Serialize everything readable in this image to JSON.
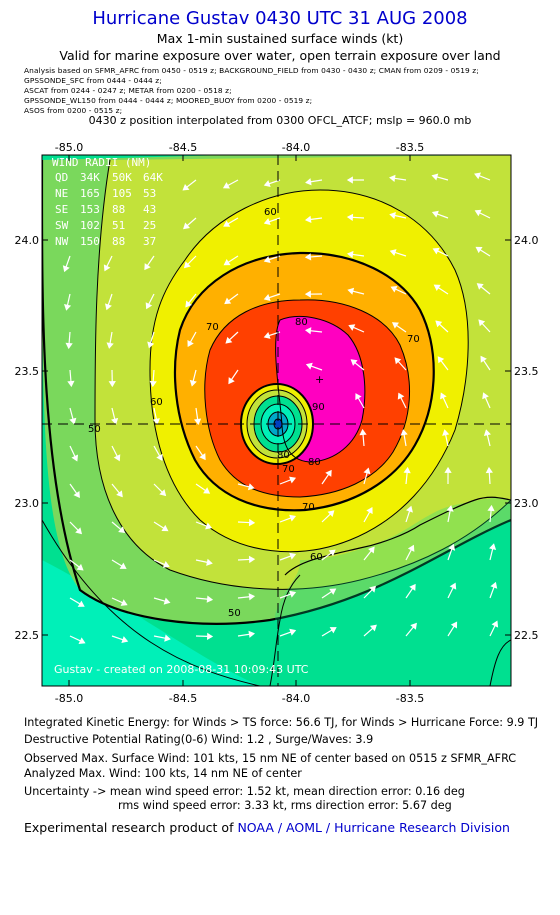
{
  "header": {
    "title": "Hurricane Gustav 0430 UTC 31 AUG 2008",
    "subtitle": "Max 1-min sustained surface winds (kt)",
    "valid_note": "Valid for marine exposure over water, open terrain exposure over land",
    "sources": [
      "Analysis based on  SFMR_AFRC from 0450 - 0519 z;  BACKGROUND_FIELD from 0430 - 0430 z;  CMAN from 0209 - 0519 z;",
      "GPSSONDE_SFC from 0444 - 0444 z;",
      "ASCAT from 0244 - 0247 z;   METAR from 0200 - 0518 z;",
      "GPSSONDE_WL150 from 0444 - 0444 z;   MOORED_BUOY from 0200 - 0519 z;",
      "ASOS from 0200 - 0515 z;"
    ],
    "position_note": "0430 z position interpolated from 0300 OFCL_ATCF; mslp = 960.0 mb"
  },
  "map": {
    "x_ticks": [
      "-85.0",
      "-84.5",
      "-84.0",
      "-83.5"
    ],
    "y_ticks": [
      "24.0",
      "23.5",
      "23.0",
      "22.5"
    ],
    "x_range": [
      -85.1,
      -83.3
    ],
    "y_range": [
      22.3,
      24.3
    ],
    "center": {
      "lon": -84.1,
      "lat": 23.3
    },
    "contour_labels": [
      "60",
      "50",
      "50",
      "60",
      "60",
      "70",
      "70",
      "70",
      "80",
      "80",
      "90",
      "80",
      "70",
      "60",
      "50"
    ],
    "wind_radii": {
      "title": "WIND RADII (NM)",
      "header": [
        "QD",
        "34K",
        "50K",
        "64K"
      ],
      "rows": [
        [
          "NE",
          "165",
          "105",
          "53"
        ],
        [
          "SE",
          "153",
          "88",
          "43"
        ],
        [
          "SW",
          "102",
          "51",
          "25"
        ],
        [
          "NW",
          "150",
          "88",
          "37"
        ]
      ]
    },
    "watermark": "Gustav - created on 2008-08-31 10:09:43 UTC",
    "colors": {
      "wind_30": "#00f0b8",
      "wind_40": "#00e090",
      "wind_50": "#7ad85c",
      "wind_55": "#c2e23a",
      "wind_60": "#f0f000",
      "wind_70": "#ffb000",
      "wind_80": "#ff4000",
      "wind_90": "#ff00c0",
      "eye": "#00a8c8"
    }
  },
  "footer": {
    "ike": "Integrated Kinetic Energy:  for Winds > TS force: 56.6 TJ,  for Winds > Hurricane Force: 9.9 TJ",
    "dpr": "Destructive Potential Rating(0-6)   Wind: 1.2 , Surge/Waves: 3.9",
    "obs_max": "Observed Max. Surface Wind: 101 kts, 15 nm NE of center based on 0515 z SFMR_AFRC",
    "analyzed_max": "Analyzed Max. Wind: 100 kts, 14 nm NE of center",
    "uncertainty_1": "Uncertainty -> mean wind speed error: 1.52 kt,   mean direction error: 0.16 deg",
    "uncertainty_2": "rms wind speed error: 3.33 kt,   rms direction error: 5.67 deg",
    "credit_prefix": "Experimental research product of ",
    "credit_link": "NOAA / AOML / Hurricane Research Division"
  }
}
